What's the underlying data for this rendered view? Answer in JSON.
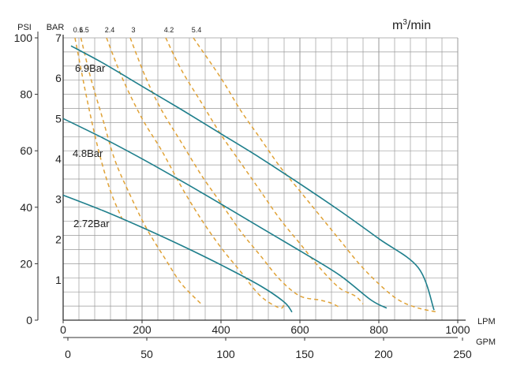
{
  "chart_data": {
    "type": "line",
    "title": "",
    "flow_unit_label": {
      "base": "m",
      "sup": "3",
      "rest": "/min"
    },
    "x_axes": {
      "lpm": {
        "label": "LPM",
        "range": [
          0,
          1000
        ],
        "ticks": [
          0,
          200,
          400,
          600,
          800,
          1000
        ]
      },
      "gpm": {
        "label": "GPM",
        "range": [
          0,
          250
        ],
        "ticks": [
          0,
          50,
          100,
          150,
          200,
          250
        ]
      }
    },
    "y_axes": {
      "psi": {
        "label": "PSI",
        "range": [
          0,
          100
        ],
        "ticks": [
          0,
          20,
          40,
          60,
          80,
          100
        ]
      },
      "bar": {
        "label": "BAR",
        "range": [
          0,
          7
        ],
        "ticks": [
          1,
          2,
          3,
          4,
          5,
          6,
          7
        ]
      }
    },
    "grid": true,
    "series": [
      {
        "name": "6.9Bar",
        "color": "#1f7f8c",
        "x": [
          20,
          100,
          200,
          300,
          400,
          500,
          600,
          700,
          800,
          900,
          940
        ],
        "y": [
          6.8,
          6.38,
          5.8,
          5.22,
          4.62,
          4.02,
          3.38,
          2.72,
          2.02,
          1.3,
          0.25
        ]
      },
      {
        "name": "4.8Bar",
        "color": "#1f7f8c",
        "x": [
          0,
          100,
          200,
          300,
          400,
          500,
          600,
          700,
          780,
          820
        ],
        "y": [
          5.0,
          4.52,
          4.0,
          3.45,
          2.88,
          2.3,
          1.72,
          1.12,
          0.5,
          0.3
        ]
      },
      {
        "name": "2.72Bar",
        "color": "#1f7f8c",
        "x": [
          0,
          100,
          200,
          300,
          400,
          500,
          560,
          580
        ],
        "y": [
          3.1,
          2.72,
          2.3,
          1.85,
          1.37,
          0.85,
          0.45,
          0.2
        ]
      }
    ],
    "air_consumption_curves": {
      "label_axis": "m³/min",
      "color": "#e0a236",
      "style": "dashed",
      "curves": [
        {
          "name": "0.6",
          "x": [
            30,
            60,
            90,
            120,
            150
          ],
          "y": [
            7.0,
            5.5,
            4.2,
            3.2,
            2.5
          ]
        },
        {
          "name": "1.5",
          "x": [
            45,
            70,
            100,
            130,
            165,
            210,
            260,
            300,
            350
          ],
          "y": [
            7.0,
            6.0,
            5.0,
            4.0,
            3.2,
            2.3,
            1.5,
            0.9,
            0.4
          ]
        },
        {
          "name": "2.4",
          "x": [
            110,
            150,
            200,
            250,
            300,
            350,
            400,
            450,
            500,
            550,
            560
          ],
          "y": [
            7.0,
            6.0,
            5.0,
            4.2,
            3.3,
            2.5,
            1.8,
            1.2,
            0.6,
            0.3,
            0.45
          ]
        },
        {
          "name": "3",
          "x": [
            170,
            210,
            250,
            300,
            350,
            400,
            450,
            500,
            550,
            600,
            650,
            680,
            700
          ],
          "y": [
            7.0,
            6.0,
            5.2,
            4.4,
            3.6,
            2.9,
            2.2,
            1.6,
            1.0,
            0.6,
            0.5,
            0.42,
            0.32
          ]
        },
        {
          "name": "4.2",
          "x": [
            260,
            300,
            350,
            400,
            450,
            500,
            550,
            600,
            650,
            700,
            740,
            760
          ],
          "y": [
            7.0,
            6.2,
            5.4,
            4.6,
            3.9,
            3.2,
            2.5,
            1.9,
            1.3,
            0.8,
            0.6,
            0.4
          ]
        },
        {
          "name": "5.4",
          "x": [
            330,
            400,
            450,
            500,
            550,
            600,
            650,
            700,
            750,
            800,
            850,
            900,
            950
          ],
          "y": [
            7.0,
            6.0,
            5.2,
            4.5,
            3.8,
            3.2,
            2.6,
            2.0,
            1.4,
            0.9,
            0.5,
            0.3,
            0.2
          ]
        }
      ]
    },
    "curve_labels": [
      "6.9Bar",
      "4.8Bar",
      "2.72Bar"
    ]
  }
}
